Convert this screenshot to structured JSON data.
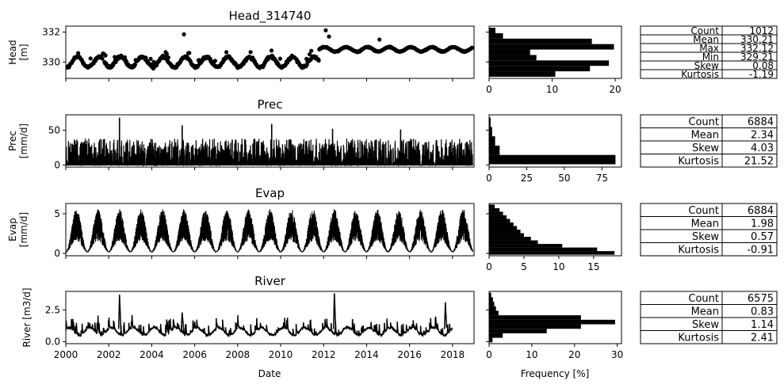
{
  "figure": {
    "shared_x_label": "Date",
    "hist_x_label": "Frequency [%]"
  },
  "chart_data": [
    {
      "id": "head",
      "type": "scatter",
      "title": "Head_314740",
      "ylabel": "Head [m]",
      "ylabel_lines": [
        "Head",
        "[m]"
      ],
      "xlim": [
        "2000-01-01",
        "2018-12-31"
      ],
      "ylim": [
        328.9,
        332.4
      ],
      "yticks": [
        "330",
        "332"
      ],
      "color": "#000000",
      "x_key_points": [
        "2000.0",
        "2001.0",
        "2002.2",
        "2002.9",
        "2004.0",
        "2005.2",
        "2005.5",
        "2006.8",
        "2008.5",
        "2009.8",
        "2010.2",
        "2011.6",
        "2011.8",
        "2012.0",
        "2012.3",
        "2012.7",
        "2013.5",
        "2014.6",
        "2015.6",
        "2016.6",
        "2017.6",
        "2018.9"
      ],
      "x_key_labels": [],
      "y_summary": "daily-to-weekly head observations ranging 329.21 to 332.12 m",
      "histogram": {
        "orientation": "horizontal",
        "bins": [
          {
            "bin": "329.2-329.5",
            "pct": 10.5
          },
          {
            "bin": "329.5-329.8",
            "pct": 16.0
          },
          {
            "bin": "329.8-330.1",
            "pct": 19.0
          },
          {
            "bin": "330.1-330.4",
            "pct": 7.5
          },
          {
            "bin": "330.4-330.7",
            "pct": 6.5
          },
          {
            "bin": "330.7-331.0",
            "pct": 19.8
          },
          {
            "bin": "331.0-331.3",
            "pct": 16.3
          },
          {
            "bin": "331.3-331.6",
            "pct": 2.2
          },
          {
            "bin": "331.6-332.1",
            "pct": 1.0
          }
        ],
        "xlim": [
          0,
          21
        ],
        "xticks": [
          "0",
          "10",
          "20"
        ]
      },
      "stats": [
        {
          "label": "Count",
          "value": "1012"
        },
        {
          "label": "Mean",
          "value": "330.21"
        },
        {
          "label": "Max",
          "value": "332.12"
        },
        {
          "label": "Min",
          "value": "329.21"
        },
        {
          "label": "Skew",
          "value": "0.08"
        },
        {
          "label": "Kurtosis",
          "value": "-1.19"
        }
      ]
    },
    {
      "id": "prec",
      "type": "line",
      "title": "Prec",
      "ylabel": "Prec [mm/d]",
      "ylabel_lines": [
        "Prec",
        "[mm/d]"
      ],
      "xlim": [
        "2000-01-01",
        "2018-12-31"
      ],
      "ylim": [
        -3,
        72
      ],
      "yticks": [
        "0",
        "50"
      ],
      "color": "#000000",
      "peaks": [
        {
          "x": "2002-07",
          "y": 68
        },
        {
          "x": "2005-06",
          "y": 57
        },
        {
          "x": "2009-08",
          "y": 59
        },
        {
          "x": "2012-06",
          "y": 52
        },
        {
          "x": "2015-08",
          "y": 51
        }
      ],
      "histogram": {
        "orientation": "horizontal",
        "bins": [
          {
            "bin": "0-5",
            "pct": 84.0
          },
          {
            "bin": "5-10",
            "pct": 7.0
          },
          {
            "bin": "10-15",
            "pct": 4.0
          },
          {
            "bin": "15-20",
            "pct": 2.0
          },
          {
            "bin": "20+",
            "pct": 1.0
          }
        ],
        "xlim": [
          0,
          88
        ],
        "xticks": [
          "0",
          "25",
          "50",
          "75"
        ]
      },
      "stats": [
        {
          "label": "Count",
          "value": "6884"
        },
        {
          "label": "Mean",
          "value": "2.34"
        },
        {
          "label": "Skew",
          "value": "4.03"
        },
        {
          "label": "Kurtosis",
          "value": "21.52"
        }
      ]
    },
    {
      "id": "evap",
      "type": "line",
      "title": "Evap",
      "ylabel": "Evap [mm/d]",
      "ylabel_lines": [
        "Evap",
        "[mm/d]"
      ],
      "xlim": [
        "2000-01-01",
        "2018-12-31"
      ],
      "ylim": [
        -0.3,
        6.3
      ],
      "yticks": [
        "0",
        "5"
      ],
      "color": "#000000",
      "seasonal_range": [
        0.2,
        5.6
      ],
      "histogram": {
        "orientation": "horizontal",
        "bins": [
          {
            "bin": "0.0-0.4",
            "pct": 18.0
          },
          {
            "bin": "0.4-0.8",
            "pct": 15.5
          },
          {
            "bin": "0.8-1.2",
            "pct": 10.5
          },
          {
            "bin": "1.2-1.6",
            "pct": 7.0
          },
          {
            "bin": "1.6-2.0",
            "pct": 6.0
          },
          {
            "bin": "2.0-2.4",
            "pct": 5.0
          },
          {
            "bin": "2.4-2.8",
            "pct": 4.5
          },
          {
            "bin": "2.8-3.2",
            "pct": 4.0
          },
          {
            "bin": "3.2-3.6",
            "pct": 3.5
          },
          {
            "bin": "3.6-4.0",
            "pct": 3.0
          },
          {
            "bin": "4.0-4.4",
            "pct": 2.5
          },
          {
            "bin": "4.4-4.8",
            "pct": 2.0
          },
          {
            "bin": "4.8-5.2",
            "pct": 1.5
          },
          {
            "bin": "5.2-5.6",
            "pct": 0.8
          }
        ],
        "xlim": [
          0,
          19
        ],
        "xticks": [
          "0",
          "5",
          "10",
          "15"
        ]
      },
      "stats": [
        {
          "label": "Count",
          "value": "6884"
        },
        {
          "label": "Mean",
          "value": "1.98"
        },
        {
          "label": "Skew",
          "value": "0.57"
        },
        {
          "label": "Kurtosis",
          "value": "-0.91"
        }
      ]
    },
    {
      "id": "river",
      "type": "line",
      "title": "River",
      "ylabel": "River [m3/d]",
      "ylabel_lines": [
        "River [m3/d]"
      ],
      "xlim": [
        "2000-01-01",
        "2018-12-31"
      ],
      "xticks": [
        "2000",
        "2002",
        "2004",
        "2006",
        "2008",
        "2010",
        "2012",
        "2014",
        "2016",
        "2018"
      ],
      "ylim": [
        -0.15,
        3.95
      ],
      "yticks": [
        "0.0",
        "2.5"
      ],
      "color": "#000000",
      "peaks": [
        {
          "x": "2002-07",
          "y": 3.7
        },
        {
          "x": "2005-06",
          "y": 2.3
        },
        {
          "x": "2012-07",
          "y": 3.8
        },
        {
          "x": "2017-09",
          "y": 3.1
        }
      ],
      "series_end": "2018-01",
      "histogram": {
        "orientation": "horizontal",
        "bins": [
          {
            "bin": "0.00-0.15",
            "pct": 0.8
          },
          {
            "bin": "0.15-0.30",
            "pct": 3.2
          },
          {
            "bin": "0.30-0.45",
            "pct": 13.5
          },
          {
            "bin": "0.45-0.60",
            "pct": 21.5
          },
          {
            "bin": "0.60-0.75",
            "pct": 29.5
          },
          {
            "bin": "0.75-0.90",
            "pct": 21.5
          },
          {
            "bin": "0.90-1.05",
            "pct": 2.2
          },
          {
            "bin": "1.05-1.20",
            "pct": 1.6
          },
          {
            "bin": "1.20-1.35",
            "pct": 1.2
          },
          {
            "bin": "1.35-1.50",
            "pct": 0.9
          },
          {
            "bin": "1.50-2.50",
            "pct": 0.5
          }
        ],
        "xlim": [
          0,
          31
        ],
        "xticks": [
          "0",
          "10",
          "20",
          "30"
        ]
      },
      "stats": [
        {
          "label": "Count",
          "value": "6575"
        },
        {
          "label": "Mean",
          "value": "0.83"
        },
        {
          "label": "Skew",
          "value": "1.14"
        },
        {
          "label": "Kurtosis",
          "value": "2.41"
        }
      ]
    }
  ]
}
